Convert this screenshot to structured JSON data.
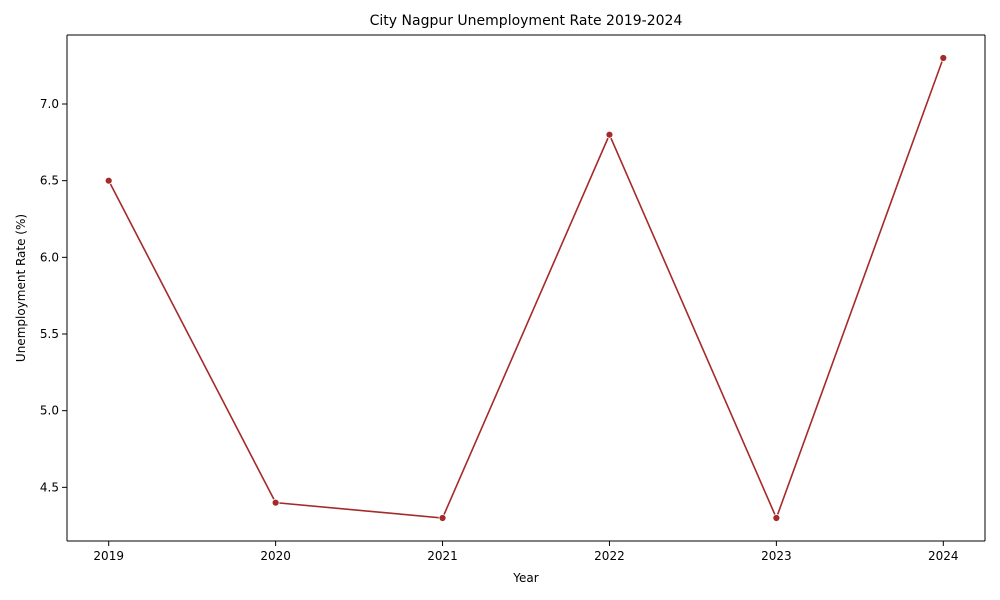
{
  "chart_data": {
    "type": "line",
    "title": "City Nagpur Unemployment Rate 2019-2024",
    "xlabel": "Year",
    "ylabel": "Unemployment Rate (%)",
    "x": [
      "2019",
      "2020",
      "2021",
      "2022",
      "2023",
      "2024"
    ],
    "series": [
      {
        "values": [
          6.5,
          4.4,
          4.3,
          6.8,
          4.3,
          7.3
        ],
        "color": "#a52a2a"
      }
    ],
    "yticks": [
      "4.5",
      "5.0",
      "5.5",
      "6.0",
      "6.5",
      "7.0"
    ],
    "ylim": [
      4.15,
      7.45
    ],
    "grid": false,
    "legend": "none"
  }
}
